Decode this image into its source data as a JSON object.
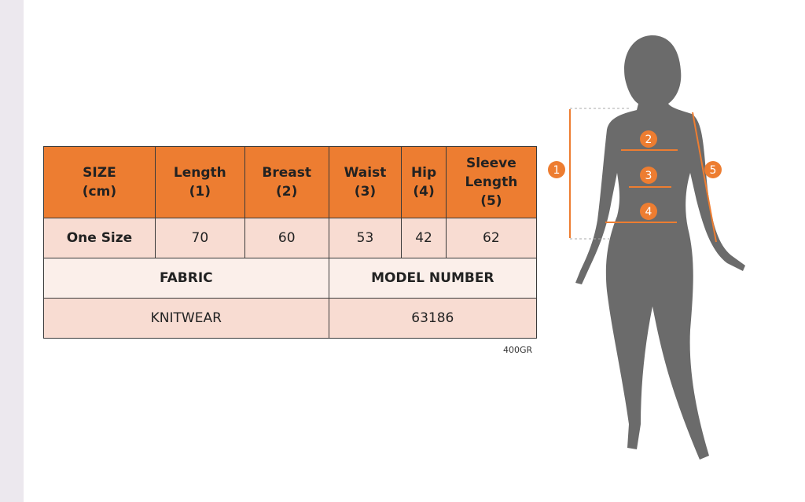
{
  "table": {
    "headers": [
      [
        "SIZE",
        "(cm)"
      ],
      [
        "Length",
        "(1)"
      ],
      [
        "Breast",
        "(2)"
      ],
      [
        "Waist",
        "(3)"
      ],
      [
        "Hip",
        "(4)"
      ],
      [
        "Sleeve",
        "Length",
        "(5)"
      ]
    ],
    "row": [
      "One Size",
      "70",
      "60",
      "53",
      "42",
      "62"
    ],
    "fabric_label": "FABRIC",
    "model_label": "MODEL NUMBER",
    "fabric_value": "KNITWEAR",
    "model_value": "63186"
  },
  "weight": "400GR",
  "figure": {
    "markers": [
      "1",
      "2",
      "3",
      "4",
      "5"
    ],
    "accent": "#ed7d31",
    "silhouette": "#6b6b6b"
  }
}
